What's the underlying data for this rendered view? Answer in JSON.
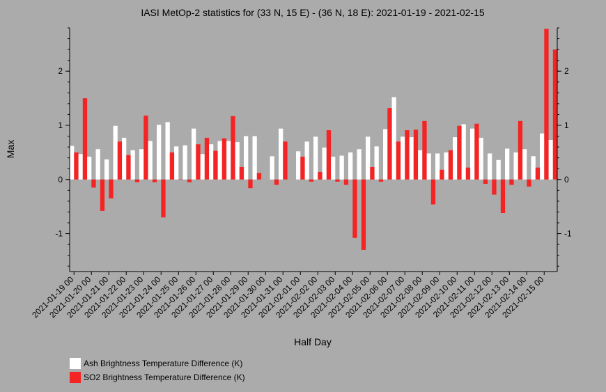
{
  "chart_data": {
    "type": "bar",
    "title": "IASI MetOp-2 statistics for (33 N, 15 E) - (36 N, 18 E): 2021-01-19 - 2021-02-15",
    "xlabel": "Half Day",
    "ylabel": "Max",
    "ylim": [
      -1.7,
      2.8
    ],
    "yticks": [
      -1,
      0,
      1,
      2
    ],
    "x_tick_labels": [
      "2021-01-19 00",
      "2021-01-20 00",
      "2021-01-21 00",
      "2021-01-22 00",
      "2021-01-23 00",
      "2021-01-24 00",
      "2021-01-25 00",
      "2021-01-26 00",
      "2021-01-27 00",
      "2021-01-28 00",
      "2021-01-29 00",
      "2021-01-30 00",
      "2021-01-31 00",
      "2021-02-01 00",
      "2021-02-02 00",
      "2021-02-03 00",
      "2021-02-04 00",
      "2021-02-05 00",
      "2021-02-06 00",
      "2021-02-07 00",
      "2021-02-08 00",
      "2021-02-09 00",
      "2021-02-10 00",
      "2021-02-11 00",
      "2021-02-12 00",
      "2021-02-13 00",
      "2021-02-14 00",
      "2021-02-15 00"
    ],
    "series": [
      {
        "name": "Ash Brightness Temperature Difference (K)",
        "color": "#ffffff",
        "values": [
          0.62,
          0.47,
          0.42,
          0.56,
          0.37,
          0.99,
          0.77,
          0.54,
          0.56,
          0.71,
          1.01,
          1.06,
          0.61,
          0.63,
          0.94,
          0.47,
          0.65,
          0.71,
          0.71,
          0.69,
          0.8,
          0.8,
          null,
          0.43,
          0.94,
          null,
          0.52,
          0.7,
          0.79,
          0.59,
          0.42,
          0.44,
          0.5,
          0.56,
          0.79,
          0.61,
          0.93,
          1.52,
          0.79,
          0.78,
          0.54,
          0.48,
          0.48,
          0.5,
          0.78,
          1.02,
          0.94,
          0.77,
          0.48,
          0.36,
          0.57,
          0.5,
          0.56,
          0.43,
          0.85,
          0.73
        ]
      },
      {
        "name": "SO2 Brightness Temperature Difference (K)",
        "color": "#f42424",
        "values": [
          0.5,
          1.5,
          -0.15,
          -0.58,
          -0.35,
          0.7,
          0.45,
          -0.05,
          1.18,
          -0.05,
          -0.7,
          0.5,
          0.0,
          -0.05,
          0.65,
          0.77,
          0.53,
          0.76,
          1.17,
          0.23,
          -0.16,
          0.12,
          null,
          -0.1,
          0.7,
          null,
          0.42,
          -0.04,
          0.14,
          0.91,
          -0.04,
          -0.1,
          -1.08,
          -1.3,
          0.23,
          -0.04,
          1.32,
          0.7,
          0.91,
          0.92,
          1.08,
          -0.46,
          0.18,
          0.54,
          0.99,
          0.22,
          1.03,
          -0.08,
          -0.28,
          -0.62,
          -0.1,
          1.08,
          -0.13,
          0.22,
          2.78,
          2.4
        ]
      }
    ],
    "legend_position": "bottom-left",
    "grid": false
  }
}
